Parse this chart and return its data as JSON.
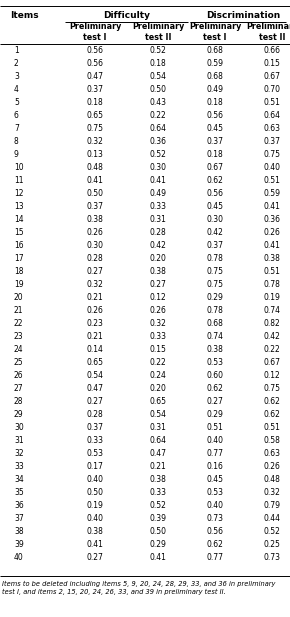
{
  "items": [
    1,
    2,
    3,
    4,
    5,
    6,
    7,
    8,
    9,
    10,
    11,
    12,
    13,
    14,
    15,
    16,
    17,
    18,
    19,
    20,
    21,
    22,
    23,
    24,
    25,
    26,
    27,
    28,
    29,
    30,
    31,
    32,
    33,
    34,
    35,
    36,
    37,
    38,
    39,
    40
  ],
  "diff_I": [
    0.56,
    0.56,
    0.47,
    0.37,
    0.18,
    0.65,
    0.75,
    0.32,
    0.13,
    0.48,
    0.41,
    0.5,
    0.37,
    0.38,
    0.26,
    0.3,
    0.28,
    0.27,
    0.32,
    0.21,
    0.26,
    0.23,
    0.21,
    0.14,
    0.65,
    0.54,
    0.47,
    0.27,
    0.28,
    0.37,
    0.33,
    0.53,
    0.17,
    0.4,
    0.5,
    0.19,
    0.4,
    0.38,
    0.41,
    0.27
  ],
  "diff_II": [
    0.52,
    0.18,
    0.54,
    0.5,
    0.43,
    0.22,
    0.64,
    0.36,
    0.52,
    0.3,
    0.41,
    0.49,
    0.33,
    0.31,
    0.28,
    0.42,
    0.2,
    0.38,
    0.27,
    0.12,
    0.26,
    0.32,
    0.33,
    0.15,
    0.22,
    0.24,
    0.2,
    0.65,
    0.54,
    0.31,
    0.64,
    0.47,
    0.21,
    0.38,
    0.33,
    0.52,
    0.39,
    0.5,
    0.29,
    0.41
  ],
  "disc_I": [
    0.68,
    0.59,
    0.68,
    0.49,
    0.18,
    0.56,
    0.45,
    0.37,
    0.18,
    0.67,
    0.62,
    0.56,
    0.45,
    0.3,
    0.42,
    0.37,
    0.78,
    0.75,
    0.75,
    0.29,
    0.78,
    0.68,
    0.74,
    0.38,
    0.53,
    0.6,
    0.62,
    0.27,
    0.29,
    0.51,
    0.4,
    0.77,
    0.16,
    0.45,
    0.53,
    0.4,
    0.73,
    0.56,
    0.62,
    0.77
  ],
  "disc_II": [
    0.66,
    0.15,
    0.67,
    0.7,
    0.51,
    0.64,
    0.63,
    0.37,
    0.75,
    0.4,
    0.51,
    0.59,
    0.41,
    0.36,
    0.26,
    0.41,
    0.38,
    0.51,
    0.78,
    0.19,
    0.74,
    0.82,
    0.42,
    0.22,
    0.67,
    0.12,
    0.75,
    0.62,
    0.62,
    0.51,
    0.58,
    0.63,
    0.26,
    0.48,
    0.32,
    0.79,
    0.44,
    0.52,
    0.25,
    0.73
  ],
  "footnote": "Items to be deleted including items 5, 9, 20, 24, 28, 29, 33, and 36 in preliminary\ntest I, and items 2, 15, 20, 24, 26, 33, and 39 in preliminary test II."
}
